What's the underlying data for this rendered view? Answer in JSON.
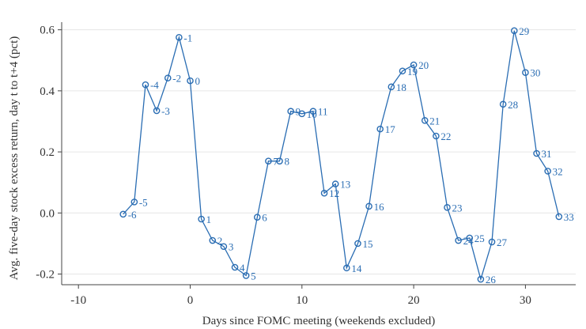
{
  "chart_data": {
    "type": "line",
    "xlabel": "Days since FOMC meeting (weekends excluded)",
    "ylabel": "Avg. five-day stock excess return, day t to t+4 (pct)",
    "xlim": [
      -11.5,
      34.5
    ],
    "ylim": [
      -0.235,
      0.625
    ],
    "xticks": [
      -10,
      0,
      10,
      20,
      30
    ],
    "yticks": [
      -0.2,
      0.0,
      0.2,
      0.4,
      0.6
    ],
    "ytick_labels": [
      "-0.2",
      "0.0",
      "0.2",
      "0.4",
      "0.6"
    ],
    "grid": true,
    "color": "#2a6db3",
    "series": [
      {
        "x": [
          -6,
          -5,
          -4,
          -3,
          -2,
          -1,
          0,
          1,
          2,
          3,
          4,
          5,
          6,
          7,
          8,
          9,
          10,
          11,
          12,
          13,
          14,
          15,
          16,
          17,
          18,
          19,
          20,
          21,
          22,
          23,
          24,
          25,
          26,
          27,
          28,
          29,
          30,
          31,
          32,
          33
        ],
        "y": [
          -0.004,
          0.036,
          0.42,
          0.335,
          0.442,
          0.575,
          0.433,
          -0.02,
          -0.09,
          -0.11,
          -0.178,
          -0.205,
          -0.014,
          0.17,
          0.17,
          0.333,
          0.325,
          0.333,
          0.065,
          0.095,
          -0.18,
          -0.1,
          0.022,
          0.275,
          0.413,
          0.465,
          0.485,
          0.303,
          0.252,
          0.018,
          -0.09,
          -0.082,
          -0.217,
          -0.095,
          0.356,
          0.597,
          0.46,
          0.195,
          0.137,
          -0.012
        ],
        "labels": [
          "-6",
          "-5",
          "-4",
          "-3",
          "-2",
          "-1",
          "0",
          "1",
          "2",
          "3",
          "4",
          "5",
          "6",
          "7",
          "8",
          "9",
          "10",
          "11",
          "12",
          "13",
          "14",
          "15",
          "16",
          "17",
          "18",
          "19",
          "20",
          "21",
          "22",
          "23",
          "24",
          "25",
          "26",
          "27",
          "28",
          "29",
          "30",
          "31",
          "32",
          "33"
        ]
      }
    ]
  }
}
